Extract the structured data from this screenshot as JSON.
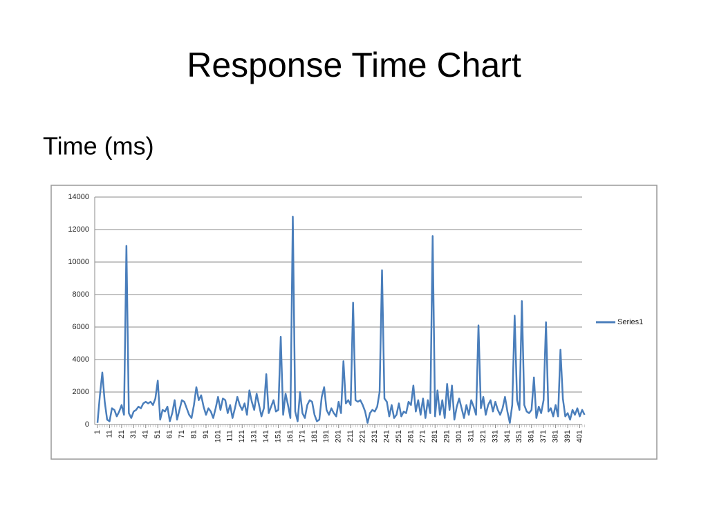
{
  "chart_data": {
    "type": "line",
    "title": "Response Time Chart",
    "y_label": "Time (ms)",
    "x": [
      1,
      3,
      5,
      7,
      9,
      11,
      13,
      15,
      17,
      19,
      21,
      23,
      25,
      27,
      29,
      31,
      33,
      35,
      37,
      39,
      41,
      43,
      45,
      47,
      49,
      51,
      53,
      55,
      57,
      59,
      61,
      63,
      65,
      67,
      69,
      71,
      73,
      75,
      77,
      79,
      81,
      83,
      85,
      87,
      89,
      91,
      93,
      95,
      97,
      99,
      101,
      103,
      105,
      107,
      109,
      111,
      113,
      115,
      117,
      119,
      121,
      123,
      125,
      127,
      129,
      131,
      133,
      135,
      137,
      139,
      141,
      143,
      145,
      147,
      149,
      151,
      153,
      155,
      157,
      159,
      161,
      163,
      165,
      167,
      169,
      171,
      173,
      175,
      177,
      179,
      181,
      183,
      185,
      187,
      189,
      191,
      193,
      195,
      197,
      199,
      201,
      203,
      205,
      207,
      209,
      211,
      213,
      215,
      217,
      219,
      221,
      223,
      225,
      227,
      229,
      231,
      233,
      235,
      237,
      239,
      241,
      243,
      245,
      247,
      249,
      251,
      253,
      255,
      257,
      259,
      261,
      263,
      265,
      267,
      269,
      271,
      273,
      275,
      277,
      279,
      281,
      283,
      285,
      287,
      289,
      291,
      293,
      295,
      297,
      299,
      301,
      303,
      305,
      307,
      309,
      311,
      313,
      315,
      317,
      319,
      321,
      323,
      325,
      327,
      329,
      331,
      333,
      335,
      337,
      339,
      341,
      343,
      345,
      347,
      349,
      351,
      353,
      355,
      357,
      359,
      361,
      363,
      365,
      367,
      369,
      371,
      373,
      375,
      377,
      379,
      381,
      383,
      385,
      387,
      389,
      391,
      393,
      395,
      397,
      399,
      401,
      403,
      405
    ],
    "series": [
      {
        "name": "Series1",
        "color": "#4a7ebb",
        "values": [
          100,
          1800,
          3200,
          1400,
          300,
          200,
          1000,
          900,
          500,
          800,
          1200,
          600,
          11000,
          700,
          400,
          800,
          900,
          1100,
          1000,
          1300,
          1400,
          1300,
          1400,
          1200,
          1600,
          2700,
          300,
          900,
          800,
          1100,
          200,
          700,
          1500,
          300,
          900,
          1500,
          1400,
          1000,
          600,
          400,
          1200,
          2300,
          1500,
          1800,
          1100,
          600,
          1000,
          800,
          400,
          1000,
          1700,
          900,
          1600,
          1500,
          700,
          1200,
          400,
          1000,
          1700,
          1200,
          900,
          1300,
          600,
          2100,
          1400,
          900,
          1900,
          1200,
          500,
          1000,
          3100,
          700,
          1100,
          1500,
          800,
          900,
          5400,
          600,
          1900,
          1200,
          400,
          12800,
          800,
          200,
          2000,
          700,
          400,
          1200,
          1500,
          1400,
          600,
          200,
          300,
          1700,
          2300,
          900,
          600,
          1000,
          700,
          500,
          1400,
          700,
          3900,
          1300,
          1500,
          1200,
          7500,
          1500,
          1400,
          1500,
          1200,
          800,
          100,
          700,
          900,
          800,
          1100,
          2000,
          9500,
          1600,
          1400,
          500,
          1200,
          400,
          600,
          1300,
          500,
          800,
          700,
          1400,
          1200,
          2400,
          800,
          1500,
          600,
          1600,
          400,
          1500,
          700,
          11600,
          500,
          2100,
          600,
          1500,
          400,
          2500,
          900,
          2400,
          300,
          1100,
          1600,
          1000,
          400,
          1200,
          600,
          1500,
          1100,
          600,
          6100,
          1000,
          1700,
          600,
          1200,
          1500,
          800,
          1400,
          900,
          600,
          1000,
          1700,
          800,
          100,
          1200,
          6700,
          1500,
          900,
          7600,
          1200,
          800,
          700,
          900,
          2900,
          400,
          1100,
          700,
          1500,
          6300,
          800,
          1000,
          500,
          1200,
          500,
          4600,
          1600,
          500,
          700,
          300,
          900,
          600,
          1000,
          500,
          900,
          600
        ]
      }
    ],
    "xlim": [
      1,
      403
    ],
    "xticks": [
      1,
      11,
      21,
      31,
      41,
      51,
      61,
      71,
      81,
      91,
      101,
      111,
      121,
      131,
      141,
      151,
      161,
      171,
      181,
      191,
      201,
      211,
      221,
      231,
      241,
      251,
      261,
      271,
      281,
      291,
      301,
      311,
      321,
      331,
      341,
      351,
      361,
      371,
      381,
      391,
      401
    ],
    "ylim": [
      0,
      14000
    ],
    "yticks": [
      0,
      2000,
      4000,
      6000,
      8000,
      10000,
      12000,
      14000
    ],
    "grid": true,
    "legend": "right"
  }
}
